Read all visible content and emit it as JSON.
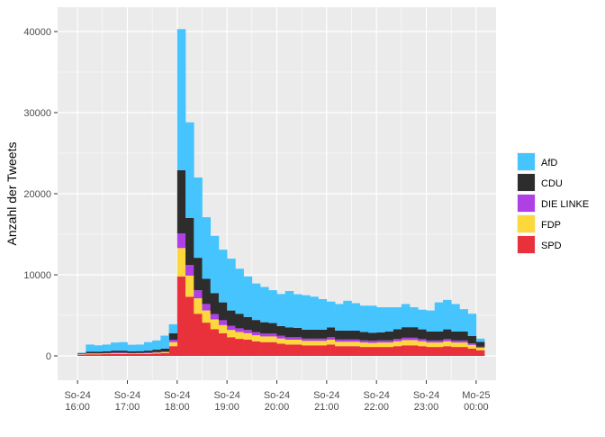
{
  "chart_data": {
    "type": "bar",
    "stacked": true,
    "ylabel": "Anzahl der Tweets",
    "xlabel": "",
    "ylim": [
      -3000,
      43000
    ],
    "yticks": [
      0,
      10000,
      20000,
      30000,
      40000
    ],
    "x_range": [
      -0.4,
      8.4
    ],
    "x_ticks": [
      {
        "value": 0,
        "line1": "So-24",
        "line2": "16:00"
      },
      {
        "value": 1,
        "line1": "So-24",
        "line2": "17:00"
      },
      {
        "value": 2,
        "line1": "So-24",
        "line2": "18:00"
      },
      {
        "value": 3,
        "line1": "So-24",
        "line2": "19:00"
      },
      {
        "value": 4,
        "line1": "So-24",
        "line2": "20:00"
      },
      {
        "value": 5,
        "line1": "So-24",
        "line2": "21:00"
      },
      {
        "value": 6,
        "line1": "So-24",
        "line2": "22:00"
      },
      {
        "value": 7,
        "line1": "So-24",
        "line2": "23:00"
      },
      {
        "value": 8,
        "line1": "Mo-25",
        "line2": "00:00"
      }
    ],
    "bin_width_hours": 0.1667,
    "bin_starts_hours": [
      0,
      0.1667,
      0.3333,
      0.5,
      0.6667,
      0.8333,
      1,
      1.1667,
      1.3333,
      1.5,
      1.6667,
      1.8333,
      2,
      2.1667,
      2.3333,
      2.5,
      2.6667,
      2.8333,
      3,
      3.1667,
      3.3333,
      3.5,
      3.6667,
      3.8333,
      4,
      4.1667,
      4.3333,
      4.5,
      4.6667,
      4.8333,
      5,
      5.1667,
      5.3333,
      5.5,
      5.6667,
      5.8333,
      6,
      6.1667,
      6.3333,
      6.5,
      6.6667,
      6.8333,
      7,
      7.1667,
      7.3333,
      7.5,
      7.6667,
      7.8333,
      8
    ],
    "series": [
      {
        "name": "SPD",
        "color": "#E8313A",
        "values": [
          150,
          200,
          200,
          220,
          250,
          250,
          220,
          230,
          250,
          300,
          350,
          1200,
          9800,
          7300,
          5200,
          4100,
          3300,
          2800,
          2300,
          2100,
          2000,
          1800,
          1700,
          1700,
          1500,
          1400,
          1400,
          1300,
          1300,
          1300,
          1400,
          1200,
          1200,
          1200,
          1100,
          1100,
          1100,
          1100,
          1200,
          1300,
          1300,
          1200,
          1100,
          1100,
          1200,
          1100,
          1100,
          900,
          700
        ]
      },
      {
        "name": "FDP",
        "color": "#FDD83C",
        "values": [
          50,
          80,
          80,
          80,
          90,
          90,
          80,
          80,
          90,
          100,
          110,
          500,
          3500,
          2600,
          1900,
          1500,
          1200,
          1000,
          900,
          850,
          800,
          750,
          700,
          700,
          650,
          600,
          600,
          550,
          550,
          550,
          600,
          550,
          550,
          550,
          550,
          500,
          550,
          550,
          600,
          650,
          650,
          600,
          550,
          550,
          600,
          550,
          550,
          450,
          300
        ]
      },
      {
        "name": "DIE LINKE",
        "color": "#B13FE6",
        "values": [
          30,
          50,
          50,
          50,
          60,
          60,
          50,
          50,
          60,
          70,
          80,
          300,
          1800,
          1300,
          1000,
          800,
          650,
          600,
          500,
          450,
          400,
          380,
          350,
          350,
          330,
          300,
          300,
          280,
          280,
          280,
          300,
          270,
          270,
          270,
          260,
          260,
          260,
          260,
          280,
          290,
          290,
          270,
          250,
          250,
          270,
          250,
          250,
          200,
          130
        ]
      },
      {
        "name": "CDU",
        "color": "#2D2D2D",
        "values": [
          80,
          200,
          200,
          220,
          250,
          250,
          220,
          230,
          250,
          300,
          350,
          800,
          7800,
          5800,
          4000,
          3100,
          2600,
          2200,
          1900,
          1800,
          1600,
          1500,
          1400,
          1300,
          1200,
          1200,
          1150,
          1100,
          1100,
          1100,
          1200,
          1100,
          1100,
          1100,
          1050,
          1000,
          1000,
          1100,
          1200,
          1300,
          1300,
          1200,
          1100,
          1100,
          1200,
          1100,
          1100,
          900,
          600
        ]
      },
      {
        "name": "AfD",
        "color": "#45C4FE",
        "values": [
          90,
          870,
          770,
          830,
          1000,
          1050,
          800,
          810,
          1050,
          1130,
          1610,
          1100,
          17400,
          11800,
          9900,
          7600,
          7050,
          6500,
          6400,
          5550,
          5000,
          4500,
          4350,
          4050,
          3950,
          4500,
          4150,
          4250,
          4070,
          3770,
          3200,
          3280,
          3680,
          3380,
          3240,
          3340,
          3090,
          2990,
          2720,
          2860,
          2460,
          2430,
          2600,
          3600,
          3630,
          3400,
          2760,
          2750,
          400
        ]
      }
    ],
    "legend": [
      "AfD",
      "CDU",
      "DIE LINKE",
      "FDP",
      "SPD"
    ],
    "legend_position": "right",
    "grid": true,
    "panel_background": "#EBEBEB",
    "grid_color": "#FFFFFF"
  }
}
